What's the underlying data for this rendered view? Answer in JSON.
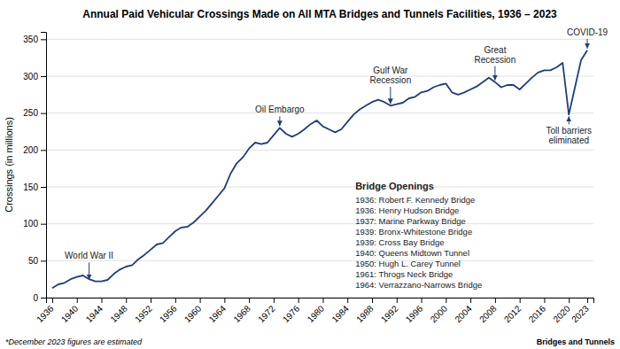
{
  "chart_data": {
    "type": "line",
    "title": "Annual Paid Vehicular Crossings Made on All MTA Bridges and Tunnels Facilities, 1936 – 2023",
    "y_label": "Crossings (in millions)",
    "x": [
      1936,
      1937,
      1938,
      1939,
      1940,
      1941,
      1942,
      1943,
      1944,
      1945,
      1946,
      1947,
      1948,
      1949,
      1950,
      1951,
      1952,
      1953,
      1954,
      1955,
      1956,
      1957,
      1958,
      1959,
      1960,
      1961,
      1962,
      1963,
      1964,
      1965,
      1966,
      1967,
      1968,
      1969,
      1970,
      1971,
      1972,
      1973,
      1974,
      1975,
      1976,
      1977,
      1978,
      1979,
      1980,
      1981,
      1982,
      1983,
      1984,
      1985,
      1986,
      1987,
      1988,
      1989,
      1990,
      1991,
      1992,
      1993,
      1994,
      1995,
      1996,
      1997,
      1998,
      1999,
      2000,
      2001,
      2002,
      2003,
      2004,
      2005,
      2006,
      2007,
      2008,
      2009,
      2010,
      2011,
      2012,
      2013,
      2014,
      2015,
      2016,
      2017,
      2018,
      2019,
      2020,
      2021,
      2022,
      2023
    ],
    "values": [
      13,
      18,
      20,
      25,
      28,
      30,
      25,
      22,
      22,
      24,
      32,
      38,
      42,
      44,
      52,
      58,
      65,
      72,
      74,
      82,
      90,
      95,
      96,
      102,
      110,
      118,
      128,
      138,
      148,
      168,
      182,
      190,
      202,
      210,
      208,
      210,
      220,
      230,
      222,
      218,
      222,
      228,
      235,
      240,
      232,
      228,
      224,
      228,
      238,
      248,
      255,
      260,
      265,
      268,
      265,
      260,
      262,
      264,
      270,
      272,
      278,
      280,
      285,
      288,
      290,
      278,
      275,
      278,
      282,
      286,
      292,
      298,
      292,
      285,
      288,
      288,
      282,
      290,
      298,
      305,
      308,
      308,
      312,
      318,
      248,
      285,
      322,
      335
    ],
    "color": "#1f3d7a",
    "xlim": [
      1935,
      2024
    ],
    "xticks": [
      1936,
      1940,
      1944,
      1948,
      1952,
      1956,
      1960,
      1964,
      1968,
      1972,
      1976,
      1980,
      1984,
      1988,
      1992,
      1996,
      2000,
      2004,
      2008,
      2012,
      2016,
      2020,
      2023
    ],
    "ylim": [
      0,
      360
    ],
    "yticks": [
      0,
      50,
      100,
      150,
      200,
      250,
      300,
      350
    ],
    "grid": true,
    "annotations": [
      {
        "text": "World War II",
        "x": 1942,
        "y": 22
      },
      {
        "text": "Oil Embargo",
        "x": 1973,
        "y": 230
      },
      {
        "text": "Gulf War\nRecession",
        "x": 1991,
        "y": 260
      },
      {
        "text": "Great\nRecession",
        "x": 2008,
        "y": 292
      },
      {
        "text": "Toll barriers\neliminated",
        "x": 2020,
        "y": 248
      },
      {
        "text": "COVID-19",
        "x": 2023,
        "y": 335
      }
    ],
    "bridge_openings_title": "Bridge Openings",
    "bridge_openings": [
      "1936: Robert F. Kennedy Bridge",
      "1936: Henry Hudson Bridge",
      "1937: Marine Parkway Bridge",
      "1939: Bronx-Whitestone Bridge",
      "1939: Cross Bay Bridge",
      "1940: Queens Midtown Tunnel",
      "1950: Hugh L. Carey Tunnel",
      "1961: Throgs Neck Bridge",
      "1964: Verrazzano-Narrows Bridge"
    ],
    "footnote": "*December 2023 figures are estimated",
    "source": "Bridges and Tunnels"
  }
}
